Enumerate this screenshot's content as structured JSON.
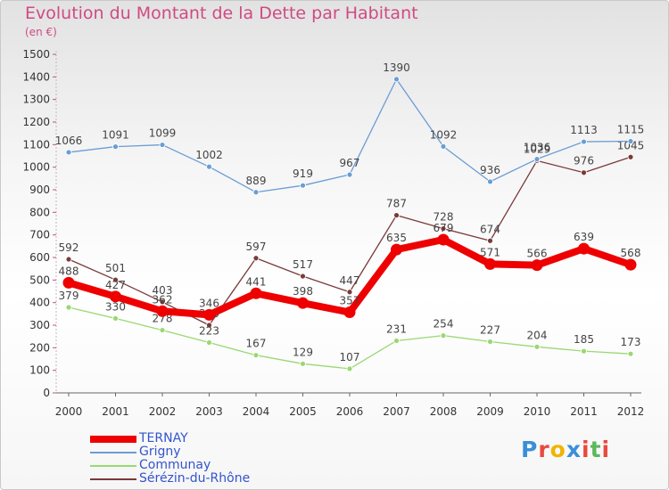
{
  "title": "Evolution du Montant de la Dette par Habitant",
  "subtitle": "(en €)",
  "logo": {
    "letters": [
      {
        "ch": "P",
        "color": "#3a8fd8"
      },
      {
        "ch": "r",
        "color": "#e84a3c"
      },
      {
        "ch": "o",
        "color": "#f0b400"
      },
      {
        "ch": "x",
        "color": "#3a8fd8"
      },
      {
        "ch": "i",
        "color": "#e84a3c"
      },
      {
        "ch": "t",
        "color": "#5cb85c"
      },
      {
        "ch": "i",
        "color": "#e84a3c"
      }
    ]
  },
  "chart_data": {
    "type": "line",
    "x": [
      "2000",
      "2001",
      "2002",
      "2003",
      "2004",
      "2005",
      "2006",
      "2007",
      "2008",
      "2009",
      "2010",
      "2011",
      "2012"
    ],
    "ylim": [
      0,
      1500
    ],
    "yticks": [
      0,
      100,
      200,
      300,
      400,
      500,
      600,
      700,
      800,
      900,
      1000,
      1100,
      1200,
      1300,
      1400,
      1500
    ],
    "grid": false,
    "legend_position": "bottom-left",
    "series": [
      {
        "name": "TERNAY",
        "color": "#ee0000",
        "values": [
          488,
          427,
          362,
          346,
          441,
          398,
          357,
          635,
          679,
          571,
          566,
          639,
          568
        ]
      },
      {
        "name": "Grigny",
        "color": "#6b9dd4",
        "values": [
          1066,
          1091,
          1099,
          1002,
          889,
          919,
          967,
          1390,
          1092,
          936,
          1036,
          1113,
          1115
        ]
      },
      {
        "name": "Communay",
        "color": "#9ad872",
        "values": [
          379,
          330,
          278,
          223,
          167,
          129,
          107,
          231,
          254,
          227,
          204,
          185,
          173
        ]
      },
      {
        "name": "Sérézin-du-Rhône",
        "color": "#7a3a3a",
        "values": [
          592,
          501,
          403,
          300,
          597,
          517,
          447,
          787,
          728,
          674,
          1029,
          976,
          1045
        ]
      }
    ]
  }
}
